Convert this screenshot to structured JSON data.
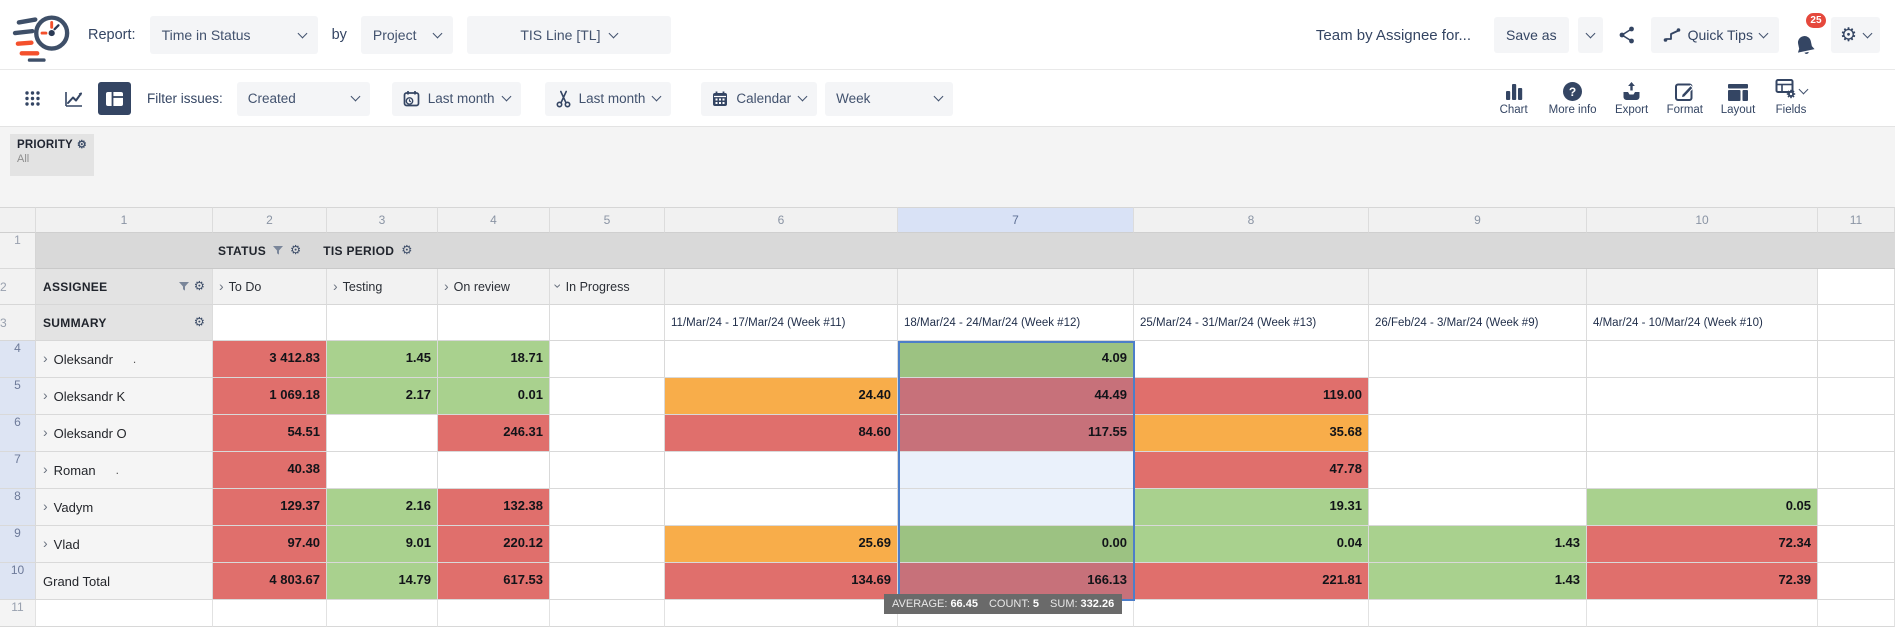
{
  "header": {
    "report_label": "Report:",
    "report_type": "Time in Status",
    "by_label": "by",
    "scope_type": "Project",
    "scope_value": "TIS Line [TL]",
    "report_name": "Team by Assignee for...",
    "save_as": "Save as",
    "quick_tips": "Quick Tips",
    "notifications": "25"
  },
  "toolbar": {
    "filter_issues_label": "Filter issues:",
    "filter_value": "Created",
    "date_range_value": "Last month",
    "trim_range_value": "Last month",
    "calendar_value": "Calendar",
    "granularity_value": "Week",
    "tools": [
      {
        "name": "chart",
        "label": "Chart"
      },
      {
        "name": "more-info",
        "label": "More info"
      },
      {
        "name": "export",
        "label": "Export"
      },
      {
        "name": "format",
        "label": "Format"
      },
      {
        "name": "layout",
        "label": "Layout"
      },
      {
        "name": "fields",
        "label": "Fields"
      }
    ]
  },
  "priority": {
    "label": "PRIORITY",
    "value": "All"
  },
  "grid": {
    "col_numbers": [
      "1",
      "2",
      "3",
      "4",
      "5",
      "6",
      "7",
      "8",
      "9",
      "10",
      "11"
    ],
    "selected_col_number": "7",
    "row1": {
      "status_label": "STATUS",
      "tis_period_label": "TIS PERIOD"
    },
    "row2": {
      "assignee_label": "ASSIGNEE",
      "statuses": [
        {
          "label": "To Do",
          "expanded": false
        },
        {
          "label": "Testing",
          "expanded": false
        },
        {
          "label": "On review",
          "expanded": false
        },
        {
          "label": "In Progress",
          "expanded": true
        }
      ]
    },
    "row3": {
      "summary_label": "SUMMARY",
      "periods": [
        "11/Mar/24 - 17/Mar/24 (Week #11)",
        "18/Mar/24 - 24/Mar/24 (Week #12)",
        "25/Mar/24 - 31/Mar/24 (Week #13)",
        "26/Feb/24 - 3/Mar/24 (Week #9)",
        "4/Mar/24 - 10/Mar/24 (Week #10)"
      ]
    },
    "rows": [
      {
        "num": "4",
        "name": "Oleksandr",
        "suffix": ".",
        "expandable": true,
        "cells": [
          {
            "v": "3 412.83",
            "c": "red"
          },
          {
            "v": "1.45",
            "c": "green"
          },
          {
            "v": "18.71",
            "c": "green"
          },
          null,
          null,
          {
            "v": "4.09",
            "c": "green"
          },
          null,
          null,
          null
        ]
      },
      {
        "num": "5",
        "name": "Oleksandr K",
        "suffix": "",
        "expandable": true,
        "cells": [
          {
            "v": "1 069.18",
            "c": "red"
          },
          {
            "v": "2.17",
            "c": "green"
          },
          {
            "v": "0.01",
            "c": "green"
          },
          null,
          {
            "v": "24.40",
            "c": "orange"
          },
          {
            "v": "44.49",
            "c": "red"
          },
          {
            "v": "119.00",
            "c": "red"
          },
          null,
          null
        ]
      },
      {
        "num": "6",
        "name": "Oleksandr O",
        "suffix": "",
        "expandable": true,
        "cells": [
          {
            "v": "54.51",
            "c": "red"
          },
          null,
          {
            "v": "246.31",
            "c": "red"
          },
          null,
          {
            "v": "84.60",
            "c": "red"
          },
          {
            "v": "117.55",
            "c": "red"
          },
          {
            "v": "35.68",
            "c": "orange"
          },
          null,
          null
        ]
      },
      {
        "num": "7",
        "name": "Roman",
        "suffix": ".",
        "expandable": true,
        "cells": [
          {
            "v": "40.38",
            "c": "red"
          },
          null,
          null,
          null,
          null,
          null,
          {
            "v": "47.78",
            "c": "red"
          },
          null,
          null
        ]
      },
      {
        "num": "8",
        "name": "Vadym",
        "suffix": "",
        "expandable": true,
        "cells": [
          {
            "v": "129.37",
            "c": "red"
          },
          {
            "v": "2.16",
            "c": "green"
          },
          {
            "v": "132.38",
            "c": "red"
          },
          null,
          null,
          null,
          {
            "v": "19.31",
            "c": "green"
          },
          null,
          {
            "v": "0.05",
            "c": "green"
          }
        ]
      },
      {
        "num": "9",
        "name": "Vlad",
        "suffix": "",
        "expandable": true,
        "cells": [
          {
            "v": "97.40",
            "c": "red"
          },
          {
            "v": "9.01",
            "c": "green"
          },
          {
            "v": "220.12",
            "c": "red"
          },
          null,
          {
            "v": "25.69",
            "c": "orange"
          },
          {
            "v": "0.00",
            "c": "green"
          },
          {
            "v": "0.04",
            "c": "green"
          },
          {
            "v": "1.43",
            "c": "green"
          },
          {
            "v": "72.34",
            "c": "red"
          }
        ]
      },
      {
        "num": "10",
        "name": "Grand Total",
        "suffix": "",
        "expandable": false,
        "cells": [
          {
            "v": "4 803.67",
            "c": "red"
          },
          {
            "v": "14.79",
            "c": "green"
          },
          {
            "v": "617.53",
            "c": "red"
          },
          null,
          {
            "v": "134.69",
            "c": "red"
          },
          {
            "v": "166.13",
            "c": "red"
          },
          {
            "v": "221.81",
            "c": "red"
          },
          {
            "v": "1.43",
            "c": "green"
          },
          {
            "v": "72.39",
            "c": "red"
          }
        ]
      }
    ],
    "last_row_num": "11"
  },
  "stats": {
    "average_label": "AVERAGE:",
    "average_value": "66.45",
    "count_label": "COUNT:",
    "count_value": "5",
    "sum_label": "SUM:",
    "sum_value": "332.26"
  },
  "colors": {
    "red": "#e06f6c",
    "green": "#a9d18e",
    "orange": "#f8ad4a",
    "selected_red": "#c7717a",
    "selected_green": "#9cc282",
    "selected_empty": "#eaf1fb",
    "selection_border": "#4d7ec9",
    "accent_navy": "#344563",
    "badge_red": "#e5483c"
  }
}
